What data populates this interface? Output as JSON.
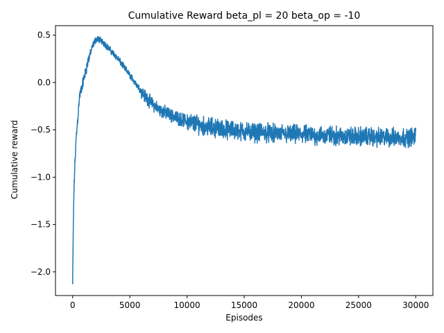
{
  "chart_data": {
    "type": "line",
    "title": "Cumulative Reward beta_pl = 20 beta_op = -10",
    "xlabel": "Episodes",
    "ylabel": "Cumulative reward",
    "xlim": [
      -1500,
      31500
    ],
    "ylim": [
      -2.25,
      0.6
    ],
    "xticks": [
      0,
      5000,
      10000,
      15000,
      20000,
      25000,
      30000
    ],
    "yticks": [
      -2.0,
      -1.5,
      -1.0,
      -0.5,
      0.0,
      0.5
    ],
    "grid": false,
    "series": [
      {
        "color": "#1f77b4",
        "x": [
          0,
          50,
          100,
          200,
          300,
          400,
          500,
          600,
          800,
          1000,
          1200,
          1400,
          1600,
          1800,
          2000,
          2200,
          2400,
          2600,
          2800,
          3000,
          3300,
          3600,
          3900,
          4200,
          4500,
          4800,
          5100,
          5400,
          5700,
          6000,
          6300,
          6600,
          7000,
          7500,
          8000,
          8500,
          9000,
          9500,
          10000,
          10500,
          11000,
          11500,
          12000,
          12500,
          13000,
          13500,
          14000,
          14500,
          15000,
          15500,
          16000,
          16500,
          17000,
          17500,
          18000,
          18500,
          19000,
          19500,
          20000,
          20500,
          21000,
          21500,
          22000,
          22500,
          23000,
          23500,
          24000,
          24500,
          25000,
          25500,
          26000,
          26500,
          27000,
          27500,
          28000,
          28500,
          29000,
          29500,
          30000
        ],
        "y": [
          -2.13,
          -1.6,
          -1.2,
          -0.85,
          -0.6,
          -0.45,
          -0.3,
          -0.15,
          -0.05,
          0.05,
          0.15,
          0.25,
          0.33,
          0.4,
          0.45,
          0.46,
          0.45,
          0.43,
          0.41,
          0.38,
          0.34,
          0.3,
          0.26,
          0.21,
          0.16,
          0.11,
          0.06,
          0.01,
          -0.04,
          -0.09,
          -0.14,
          -0.18,
          -0.23,
          -0.28,
          -0.31,
          -0.34,
          -0.37,
          -0.39,
          -0.41,
          -0.43,
          -0.44,
          -0.46,
          -0.47,
          -0.48,
          -0.49,
          -0.5,
          -0.5,
          -0.51,
          -0.52,
          -0.52,
          -0.53,
          -0.53,
          -0.53,
          -0.54,
          -0.54,
          -0.54,
          -0.55,
          -0.55,
          -0.55,
          -0.55,
          -0.56,
          -0.56,
          -0.56,
          -0.56,
          -0.56,
          -0.57,
          -0.57,
          -0.57,
          -0.57,
          -0.57,
          -0.57,
          -0.58,
          -0.58,
          -0.58,
          -0.58,
          -0.58,
          -0.58,
          -0.58,
          -0.57
        ]
      }
    ]
  }
}
